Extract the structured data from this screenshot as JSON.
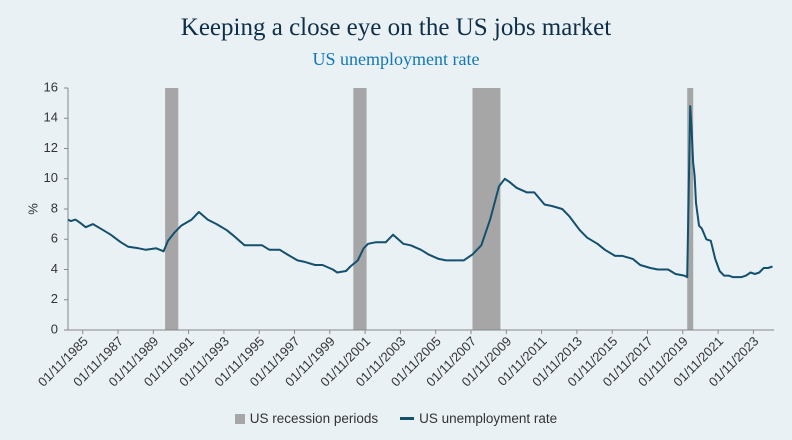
{
  "chart_data": {
    "type": "line",
    "title": "Keeping a close eye on the US jobs market",
    "subtitle": "US unemployment rate",
    "ylabel": "%",
    "xlabel": "",
    "ylim": [
      0,
      16
    ],
    "yticks": [
      0,
      2,
      4,
      6,
      8,
      10,
      12,
      14,
      16
    ],
    "xlim": [
      "1985-01",
      "2024-12"
    ],
    "xtick_labels": [
      "01/11/1985",
      "01/11/1987",
      "01/11/1989",
      "01/11/1991",
      "01/11/1993",
      "01/11/1995",
      "01/11/1997",
      "01/11/1999",
      "01/11/2001",
      "01/11/2003",
      "01/11/2005",
      "01/11/2007",
      "01/11/2009",
      "01/11/2011",
      "01/11/2013",
      "01/11/2015",
      "01/11/2017",
      "01/11/2019",
      "01/11/2021",
      "01/11/2023"
    ],
    "grid": false,
    "legend_position": "bottom",
    "colors": {
      "recession": "#a6a6a6",
      "line": "#13506e"
    },
    "recessions": [
      {
        "start": "1990-07",
        "end": "1991-03"
      },
      {
        "start": "2001-03",
        "end": "2001-11"
      },
      {
        "start": "2007-12",
        "end": "2009-06"
      },
      {
        "start": "2020-02",
        "end": "2020-04"
      }
    ],
    "series": [
      {
        "name": "US recession periods",
        "kind": "bar"
      },
      {
        "name": "US unemployment rate",
        "kind": "line",
        "x": [
          "1985-01",
          "1985-03",
          "1985-06",
          "1985-09",
          "1986-01",
          "1986-06",
          "1987-01",
          "1987-06",
          "1988-01",
          "1988-06",
          "1989-01",
          "1989-06",
          "1990-01",
          "1990-06",
          "1990-09",
          "1991-01",
          "1991-06",
          "1992-01",
          "1992-06",
          "1992-12",
          "1993-06",
          "1994-01",
          "1994-06",
          "1995-01",
          "1995-06",
          "1996-01",
          "1996-06",
          "1997-01",
          "1997-06",
          "1998-01",
          "1998-06",
          "1999-01",
          "1999-06",
          "2000-01",
          "2000-04",
          "2000-10",
          "2001-01",
          "2001-06",
          "2001-10",
          "2002-01",
          "2002-06",
          "2003-01",
          "2003-06",
          "2004-01",
          "2004-06",
          "2005-01",
          "2005-06",
          "2006-01",
          "2006-06",
          "2007-01",
          "2007-06",
          "2007-12",
          "2008-06",
          "2008-12",
          "2009-06",
          "2009-10",
          "2010-01",
          "2010-06",
          "2011-01",
          "2011-06",
          "2012-01",
          "2012-06",
          "2013-01",
          "2013-06",
          "2014-01",
          "2014-06",
          "2015-01",
          "2015-06",
          "2016-01",
          "2016-06",
          "2017-01",
          "2017-06",
          "2018-01",
          "2018-06",
          "2019-01",
          "2019-06",
          "2019-12",
          "2020-02",
          "2020-04",
          "2020-05",
          "2020-06",
          "2020-07",
          "2020-08",
          "2020-10",
          "2020-12",
          "2021-03",
          "2021-06",
          "2021-09",
          "2021-12",
          "2022-03",
          "2022-06",
          "2022-09",
          "2022-12",
          "2023-03",
          "2023-06",
          "2023-09",
          "2023-12",
          "2024-03",
          "2024-06",
          "2024-09",
          "2024-12"
        ],
        "y": [
          7.3,
          7.2,
          7.3,
          7.1,
          6.8,
          7.0,
          6.6,
          6.3,
          5.8,
          5.5,
          5.4,
          5.3,
          5.4,
          5.2,
          5.9,
          6.4,
          6.9,
          7.3,
          7.8,
          7.3,
          7.0,
          6.6,
          6.2,
          5.6,
          5.6,
          5.6,
          5.3,
          5.3,
          5.0,
          4.6,
          4.5,
          4.3,
          4.3,
          4.0,
          3.8,
          3.9,
          4.2,
          4.6,
          5.4,
          5.7,
          5.8,
          5.8,
          6.3,
          5.7,
          5.6,
          5.3,
          5.0,
          4.7,
          4.6,
          4.6,
          4.6,
          5.0,
          5.6,
          7.3,
          9.5,
          10.0,
          9.8,
          9.4,
          9.1,
          9.1,
          8.3,
          8.2,
          8.0,
          7.5,
          6.6,
          6.1,
          5.7,
          5.3,
          4.9,
          4.9,
          4.7,
          4.3,
          4.1,
          4.0,
          4.0,
          3.7,
          3.6,
          3.5,
          14.8,
          13.3,
          11.1,
          10.2,
          8.4,
          6.9,
          6.7,
          6.0,
          5.9,
          4.7,
          3.9,
          3.6,
          3.6,
          3.5,
          3.5,
          3.5,
          3.6,
          3.8,
          3.7,
          3.8,
          4.1,
          4.1,
          4.2
        ]
      }
    ]
  }
}
